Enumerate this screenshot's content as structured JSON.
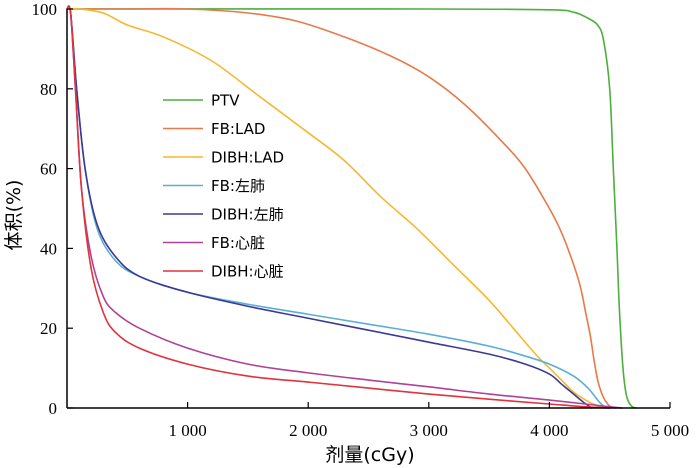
{
  "chart_data": {
    "type": "line",
    "title": "",
    "xlabel": "剂量(cGy)",
    "ylabel": "体积(%)",
    "xlim": [
      0,
      5000
    ],
    "ylim": [
      0,
      100
    ],
    "x_ticks": [
      {
        "value": 1000,
        "label": "1 000"
      },
      {
        "value": 2000,
        "label": "2 000"
      },
      {
        "value": 3000,
        "label": "3 000"
      },
      {
        "value": 4000,
        "label": "4 000"
      },
      {
        "value": 5000,
        "label": "5 000"
      }
    ],
    "y_ticks": [
      {
        "value": 0,
        "label": "0"
      },
      {
        "value": 20,
        "label": "20"
      },
      {
        "value": 40,
        "label": "40"
      },
      {
        "value": 60,
        "label": "60"
      },
      {
        "value": 80,
        "label": "80"
      },
      {
        "value": 100,
        "label": "100"
      }
    ],
    "grid": false,
    "legend_position": "upper-left-inside",
    "series": [
      {
        "name": "PTV",
        "color": "#4daf3c",
        "points": [
          [
            0,
            100
          ],
          [
            3000,
            100
          ],
          [
            4000,
            99.8
          ],
          [
            4200,
            99.2
          ],
          [
            4300,
            98
          ],
          [
            4400,
            96
          ],
          [
            4450,
            92
          ],
          [
            4500,
            80
          ],
          [
            4530,
            60
          ],
          [
            4560,
            40
          ],
          [
            4580,
            25
          ],
          [
            4610,
            10
          ],
          [
            4640,
            3
          ],
          [
            4680,
            0.5
          ],
          [
            4720,
            0
          ]
        ]
      },
      {
        "name": "FB:LAD",
        "color": "#e8794a",
        "points": [
          [
            0,
            100
          ],
          [
            200,
            100
          ],
          [
            500,
            100
          ],
          [
            1000,
            100
          ],
          [
            1500,
            99
          ],
          [
            1900,
            97
          ],
          [
            2300,
            93
          ],
          [
            2700,
            88
          ],
          [
            3000,
            83
          ],
          [
            3300,
            76
          ],
          [
            3600,
            67
          ],
          [
            3800,
            60
          ],
          [
            4000,
            50
          ],
          [
            4100,
            44
          ],
          [
            4200,
            36
          ],
          [
            4260,
            30
          ],
          [
            4300,
            24
          ],
          [
            4340,
            18
          ],
          [
            4370,
            12
          ],
          [
            4400,
            7
          ],
          [
            4430,
            4
          ],
          [
            4460,
            2
          ],
          [
            4500,
            0.5
          ],
          [
            4550,
            0
          ]
        ]
      },
      {
        "name": "DIBH:LAD",
        "color": "#f5b830",
        "points": [
          [
            0,
            100
          ],
          [
            100,
            100
          ],
          [
            300,
            99
          ],
          [
            500,
            96
          ],
          [
            800,
            93
          ],
          [
            1200,
            87
          ],
          [
            1600,
            78
          ],
          [
            2000,
            69
          ],
          [
            2300,
            62
          ],
          [
            2600,
            53
          ],
          [
            2900,
            45
          ],
          [
            3200,
            36
          ],
          [
            3500,
            27
          ],
          [
            3700,
            20
          ],
          [
            3900,
            13
          ],
          [
            4000,
            10
          ],
          [
            4100,
            7
          ],
          [
            4200,
            4
          ],
          [
            4300,
            2
          ],
          [
            4400,
            0.5
          ],
          [
            4450,
            0
          ]
        ]
      },
      {
        "name": "FB:左肺",
        "color": "#5aaed6",
        "points": [
          [
            0,
            100
          ],
          [
            30,
            99
          ],
          [
            80,
            80
          ],
          [
            150,
            60
          ],
          [
            250,
            45
          ],
          [
            400,
            37
          ],
          [
            600,
            33
          ],
          [
            1000,
            29
          ],
          [
            1500,
            26
          ],
          [
            2000,
            23.5
          ],
          [
            2500,
            21
          ],
          [
            3000,
            18.5
          ],
          [
            3500,
            15.5
          ],
          [
            3800,
            13
          ],
          [
            4000,
            11
          ],
          [
            4200,
            8
          ],
          [
            4320,
            5
          ],
          [
            4400,
            2
          ],
          [
            4450,
            0.5
          ],
          [
            4500,
            0
          ]
        ]
      },
      {
        "name": "DIBH:左肺",
        "color": "#3a3a96",
        "points": [
          [
            0,
            100
          ],
          [
            30,
            99
          ],
          [
            80,
            80
          ],
          [
            150,
            60
          ],
          [
            250,
            46
          ],
          [
            400,
            38
          ],
          [
            600,
            33
          ],
          [
            1000,
            29
          ],
          [
            1500,
            25.5
          ],
          [
            2000,
            22.5
          ],
          [
            2500,
            19.5
          ],
          [
            3000,
            16.5
          ],
          [
            3500,
            13.5
          ],
          [
            3800,
            11
          ],
          [
            4000,
            8.5
          ],
          [
            4100,
            6
          ],
          [
            4200,
            3.5
          ],
          [
            4280,
            1.5
          ],
          [
            4350,
            0
          ]
        ]
      },
      {
        "name": "FB:心脏",
        "color": "#b04296",
        "points": [
          [
            0,
            100
          ],
          [
            30,
            99
          ],
          [
            70,
            80
          ],
          [
            120,
            55
          ],
          [
            200,
            38
          ],
          [
            300,
            28
          ],
          [
            400,
            24
          ],
          [
            600,
            20
          ],
          [
            1000,
            15
          ],
          [
            1500,
            11
          ],
          [
            2000,
            8.8
          ],
          [
            2500,
            7
          ],
          [
            3000,
            5.3
          ],
          [
            3500,
            3.5
          ],
          [
            4000,
            2
          ],
          [
            4300,
            1
          ],
          [
            4500,
            0.3
          ],
          [
            4600,
            0
          ]
        ]
      },
      {
        "name": "DIBH:心脏",
        "color": "#e0333c",
        "points": [
          [
            0,
            100
          ],
          [
            30,
            99
          ],
          [
            70,
            80
          ],
          [
            120,
            55
          ],
          [
            200,
            35
          ],
          [
            300,
            24
          ],
          [
            400,
            19
          ],
          [
            600,
            15
          ],
          [
            1000,
            11
          ],
          [
            1500,
            8
          ],
          [
            2000,
            6.5
          ],
          [
            2500,
            5
          ],
          [
            3000,
            3.5
          ],
          [
            3500,
            2.2
          ],
          [
            4000,
            1
          ],
          [
            4300,
            0.3
          ],
          [
            4500,
            0
          ]
        ]
      }
    ]
  }
}
